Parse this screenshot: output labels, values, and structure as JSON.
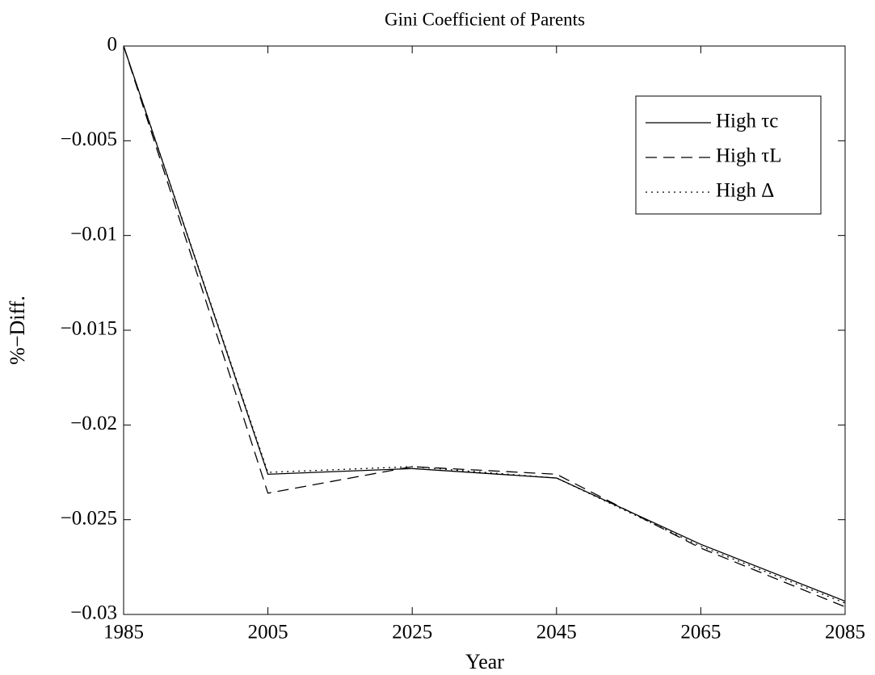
{
  "chart_data": {
    "type": "line",
    "title": "Gini Coefficient of Parents",
    "x_label": "Year",
    "y_label": "%−Diff.",
    "x": [
      1985,
      2005,
      2025,
      2045,
      2065,
      2085
    ],
    "xlim": [
      1985,
      2085
    ],
    "xticks": [
      1985,
      2005,
      2025,
      2045,
      2065,
      2085
    ],
    "ylim": [
      -0.03,
      0
    ],
    "yticks": [
      {
        "value": -0.03,
        "label": "−0.03"
      },
      {
        "value": -0.025,
        "label": "−0.025"
      },
      {
        "value": -0.02,
        "label": "−0.02"
      },
      {
        "value": -0.015,
        "label": "−0.015"
      },
      {
        "value": -0.01,
        "label": "−0.01"
      },
      {
        "value": -0.005,
        "label": "−0.005"
      },
      0
    ],
    "legend": "upper right",
    "series": [
      {
        "name": "High τc",
        "color": "#000000",
        "dash": "solid",
        "values": [
          0,
          -0.0226,
          -0.0223,
          -0.0228,
          -0.0263,
          -0.0293
        ]
      },
      {
        "name": "High τL",
        "color": "#000000",
        "dash": "dashed",
        "values": [
          0,
          -0.0236,
          -0.0222,
          -0.0226,
          -0.0265,
          -0.0296
        ]
      },
      {
        "name": "High Δ",
        "color": "#000000",
        "dash": "dotted",
        "values": [
          0,
          -0.0225,
          -0.0222,
          -0.0228,
          -0.0264,
          -0.0294
        ]
      }
    ]
  }
}
